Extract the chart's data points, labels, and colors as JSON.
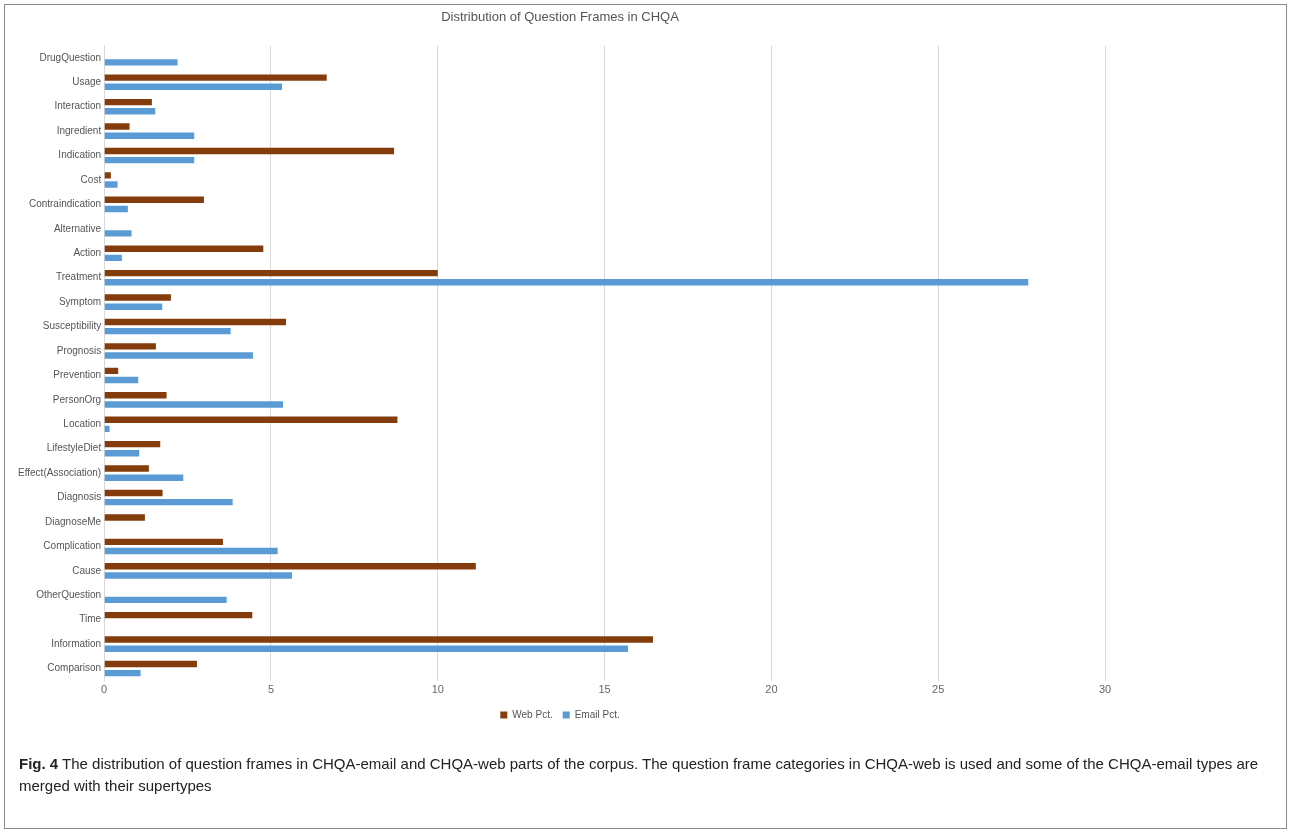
{
  "chart_data": {
    "type": "bar",
    "orientation": "horizontal",
    "title": "Distribution of Question Frames in CHQA",
    "categories": [
      "DrugQuestion",
      "Usage",
      "Interaction",
      "Ingredient",
      "Indication",
      "Cost",
      "Contraindication",
      "Alternative",
      "Action",
      "Treatment",
      "Symptom",
      "Susceptibility",
      "Prognosis",
      "Prevention",
      "PersonOrg",
      "Location",
      "LifestyleDiet",
      "Effect(Association)",
      "Diagnosis",
      "DiagnoseMe",
      "Complication",
      "Cause",
      "OtherQuestion",
      "Time",
      "Information",
      "Comparison"
    ],
    "series": [
      {
        "name": "Web Pct.",
        "color": "#843c0c",
        "values": [
          null,
          6.67,
          1.43,
          0.76,
          8.69,
          0.2,
          2.99,
          null,
          4.77,
          10.0,
          2.0,
          5.45,
          1.55,
          0.42,
          1.87,
          8.79,
          1.68,
          1.34,
          1.75,
          1.22,
          3.56,
          11.14,
          null,
          4.44,
          16.45,
          2.78
        ]
      },
      {
        "name": "Email Pct.",
        "color": "#5b9bd5",
        "values": [
          2.2,
          5.33,
          1.53,
          2.7,
          2.7,
          0.4,
          0.71,
          0.82,
          0.53,
          27.7,
          1.74,
          3.79,
          4.46,
          1.02,
          5.36,
          0.16,
          1.05,
          2.37,
          3.85,
          null,
          5.2,
          5.63,
          3.67,
          null,
          15.7,
          1.09
        ]
      }
    ],
    "xlim": [
      0,
      30
    ],
    "xticks": [
      0,
      5,
      10,
      15,
      20,
      25,
      30
    ],
    "grid": "x",
    "legend": "bottom",
    "annotations": [
      "Fig. 4 The distribution of question frames in CHQA-email and CHQA-web parts of the corpus. The question frame categories in CHQA-web is used and some of the CHQA-email types are merged with their supertypes"
    ]
  }
}
